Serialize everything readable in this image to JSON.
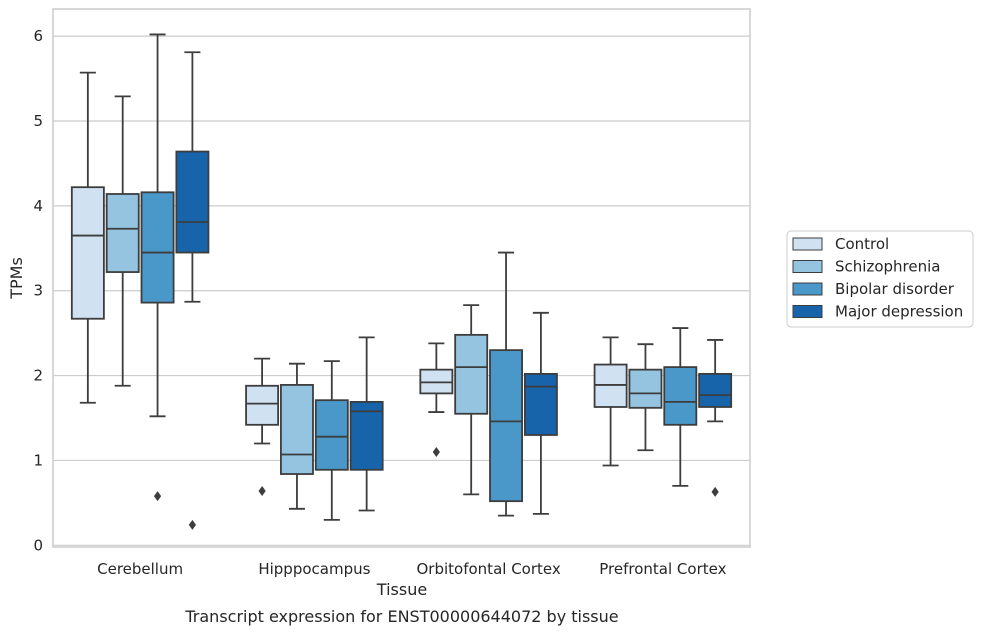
{
  "chart_data": {
    "type": "box",
    "title": "Transcript expression for ENST00000644072 by tissue",
    "xlabel": "Tissue",
    "ylabel": "TPMs",
    "ylim": [
      -0.02,
      6.32
    ],
    "yticks": [
      0,
      1,
      2,
      3,
      4,
      5,
      6
    ],
    "grid": true,
    "legend_position": "right",
    "categories": [
      "Cerebellum",
      "Hipppocampus",
      "Orbitofontal Cortex",
      "Prefrontal Cortex"
    ],
    "series": [
      {
        "name": "Control",
        "color": "#d0e1f2",
        "boxes": [
          {
            "whislo": 1.68,
            "q1": 2.67,
            "med": 3.65,
            "q3": 4.22,
            "whishi": 5.57,
            "fliers": []
          },
          {
            "whislo": 1.2,
            "q1": 1.42,
            "med": 1.67,
            "q3": 1.88,
            "whishi": 2.2,
            "fliers": [
              0.64
            ]
          },
          {
            "whislo": 1.57,
            "q1": 1.79,
            "med": 1.92,
            "q3": 2.07,
            "whishi": 2.38,
            "fliers": [
              1.1
            ]
          },
          {
            "whislo": 0.94,
            "q1": 1.63,
            "med": 1.89,
            "q3": 2.13,
            "whishi": 2.45,
            "fliers": []
          }
        ]
      },
      {
        "name": "Schizophrenia",
        "color": "#94c4df",
        "boxes": [
          {
            "whislo": 1.88,
            "q1": 3.22,
            "med": 3.73,
            "q3": 4.14,
            "whishi": 5.29,
            "fliers": []
          },
          {
            "whislo": 0.43,
            "q1": 0.84,
            "med": 1.07,
            "q3": 1.89,
            "whishi": 2.14,
            "fliers": []
          },
          {
            "whislo": 0.6,
            "q1": 1.55,
            "med": 2.1,
            "q3": 2.48,
            "whishi": 2.83,
            "fliers": []
          },
          {
            "whislo": 1.12,
            "q1": 1.62,
            "med": 1.79,
            "q3": 2.07,
            "whishi": 2.37,
            "fliers": []
          }
        ]
      },
      {
        "name": "Bipolar disorder",
        "color": "#4a98c9",
        "boxes": [
          {
            "whislo": 1.52,
            "q1": 2.86,
            "med": 3.45,
            "q3": 4.16,
            "whishi": 6.02,
            "fliers": [
              0.58
            ]
          },
          {
            "whislo": 0.3,
            "q1": 0.89,
            "med": 1.28,
            "q3": 1.71,
            "whishi": 2.17,
            "fliers": []
          },
          {
            "whislo": 0.35,
            "q1": 0.52,
            "med": 1.46,
            "q3": 2.3,
            "whishi": 3.45,
            "fliers": []
          },
          {
            "whislo": 0.7,
            "q1": 1.42,
            "med": 1.69,
            "q3": 2.1,
            "whishi": 2.56,
            "fliers": []
          }
        ]
      },
      {
        "name": "Major depression",
        "color": "#1764ab",
        "boxes": [
          {
            "whislo": 2.87,
            "q1": 3.45,
            "med": 3.81,
            "q3": 4.64,
            "whishi": 5.81,
            "fliers": [
              0.24
            ]
          },
          {
            "whislo": 0.41,
            "q1": 0.89,
            "med": 1.58,
            "q3": 1.69,
            "whishi": 2.45,
            "fliers": []
          },
          {
            "whislo": 0.37,
            "q1": 1.3,
            "med": 1.87,
            "q3": 2.02,
            "whishi": 2.74,
            "fliers": []
          },
          {
            "whislo": 1.46,
            "q1": 1.63,
            "med": 1.77,
            "q3": 2.02,
            "whishi": 2.42,
            "fliers": [
              0.63
            ]
          }
        ]
      }
    ]
  }
}
